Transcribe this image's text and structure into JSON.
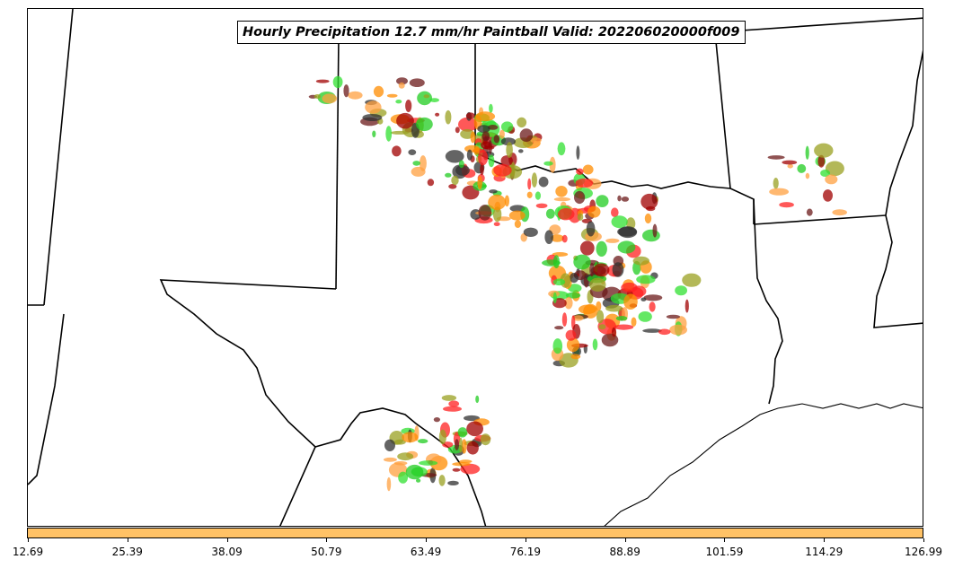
{
  "title": "Hourly Precipitation 12.7 mm/hr Paintball Valid: 202206020000f009",
  "colorbar": {
    "color": "#ffc266",
    "ticks": [
      "12.69",
      "25.39",
      "38.09",
      "50.79",
      "63.49",
      "76.19",
      "88.89",
      "101.59",
      "114.29",
      "126.99"
    ]
  },
  "member_colors": [
    "#ff2020",
    "#a00000",
    "#6b1a1a",
    "#ff8c00",
    "#ffa040",
    "#9aa020",
    "#20cc20",
    "#30e030",
    "#303030"
  ],
  "map": {
    "region": "southern-plains-texas",
    "borders": "state-boundaries",
    "coastline": "gulf-of-mexico"
  }
}
